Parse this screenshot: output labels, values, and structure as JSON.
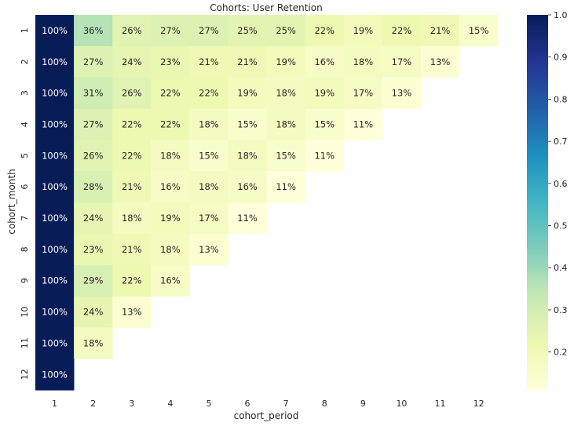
{
  "chart_data": {
    "type": "heatmap",
    "title": "Cohorts: User Retention",
    "xlabel": "cohort_period",
    "ylabel": "cohort_month",
    "x_categories": [
      "1",
      "2",
      "3",
      "4",
      "5",
      "6",
      "7",
      "8",
      "9",
      "10",
      "11",
      "12"
    ],
    "y_categories": [
      "1",
      "2",
      "3",
      "4",
      "5",
      "6",
      "7",
      "8",
      "9",
      "10",
      "11",
      "12"
    ],
    "value_format": "percent",
    "colormap": "YlGnBu",
    "values": [
      [
        1.0,
        0.36,
        0.26,
        0.27,
        0.27,
        0.25,
        0.25,
        0.22,
        0.19,
        0.22,
        0.21,
        0.15
      ],
      [
        1.0,
        0.27,
        0.24,
        0.23,
        0.21,
        0.21,
        0.19,
        0.16,
        0.18,
        0.17,
        0.13,
        null
      ],
      [
        1.0,
        0.31,
        0.26,
        0.22,
        0.22,
        0.19,
        0.18,
        0.19,
        0.17,
        0.13,
        null,
        null
      ],
      [
        1.0,
        0.27,
        0.22,
        0.22,
        0.18,
        0.15,
        0.18,
        0.15,
        0.11,
        null,
        null,
        null
      ],
      [
        1.0,
        0.26,
        0.22,
        0.18,
        0.15,
        0.18,
        0.15,
        0.11,
        null,
        null,
        null,
        null
      ],
      [
        1.0,
        0.28,
        0.21,
        0.16,
        0.18,
        0.16,
        0.11,
        null,
        null,
        null,
        null,
        null
      ],
      [
        1.0,
        0.24,
        0.18,
        0.19,
        0.17,
        0.11,
        null,
        null,
        null,
        null,
        null,
        null
      ],
      [
        1.0,
        0.23,
        0.21,
        0.18,
        0.13,
        null,
        null,
        null,
        null,
        null,
        null,
        null
      ],
      [
        1.0,
        0.29,
        0.22,
        0.16,
        null,
        null,
        null,
        null,
        null,
        null,
        null,
        null
      ],
      [
        1.0,
        0.24,
        0.13,
        null,
        null,
        null,
        null,
        null,
        null,
        null,
        null,
        null
      ],
      [
        1.0,
        0.18,
        null,
        null,
        null,
        null,
        null,
        null,
        null,
        null,
        null,
        null
      ],
      [
        1.0,
        null,
        null,
        null,
        null,
        null,
        null,
        null,
        null,
        null,
        null,
        null
      ]
    ],
    "colorbar": {
      "range": [
        0.11,
        1.0
      ],
      "ticks": [
        "0.2",
        "0.3",
        "0.4",
        "0.5",
        "0.6",
        "0.7",
        "0.8",
        "0.9",
        "1.0"
      ]
    }
  }
}
